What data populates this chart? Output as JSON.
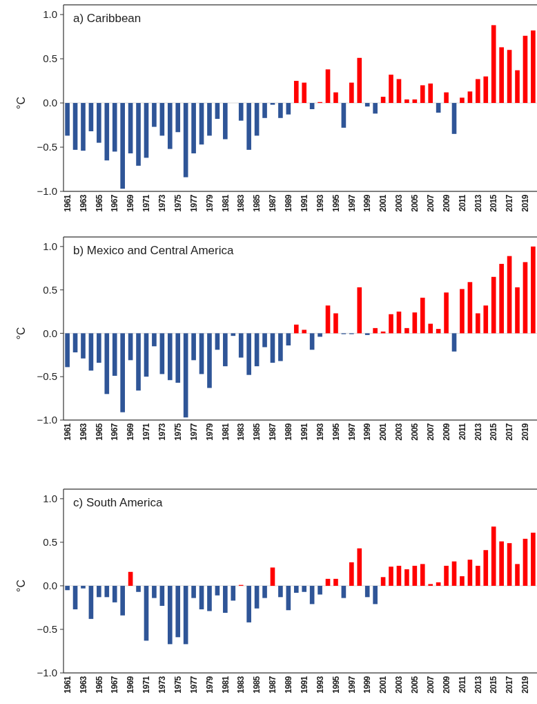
{
  "chart_data": [
    {
      "type": "bar",
      "title": "a) Caribbean",
      "ylabel": "°C",
      "categories": [
        "1961",
        null,
        "1963",
        null,
        "1965",
        null,
        "1967",
        null,
        "1969",
        null,
        "1971",
        null,
        "1973",
        null,
        "1975",
        null,
        "1977",
        null,
        "1979",
        null,
        "1981",
        null,
        "1983",
        null,
        "1985",
        null,
        "1987",
        null,
        "1989",
        null,
        "1991",
        null,
        "1993",
        null,
        "1995",
        null,
        "1997",
        null,
        "1999",
        null,
        "2001",
        null,
        "2003",
        null,
        "2005",
        null,
        "2007",
        null,
        "2009",
        null,
        "2011",
        null,
        "2013",
        null,
        "2015",
        null,
        "2017",
        null,
        "2019",
        null
      ],
      "values": [
        -0.37,
        -0.53,
        -0.54,
        -0.32,
        -0.45,
        -0.65,
        -0.55,
        -0.97,
        -0.57,
        -0.71,
        -0.62,
        -0.27,
        -0.37,
        -0.52,
        -0.33,
        -0.84,
        -0.57,
        -0.47,
        -0.37,
        -0.18,
        -0.41,
        0,
        -0.2,
        -0.53,
        -0.37,
        -0.17,
        -0.02,
        -0.17,
        -0.13,
        0.25,
        0.23,
        -0.07,
        0.01,
        0.38,
        0.12,
        -0.28,
        0.23,
        0.51,
        -0.04,
        -0.12,
        0.07,
        0.32,
        0.27,
        0.04,
        0.04,
        0.2,
        0.22,
        -0.11,
        0.12,
        -0.35,
        0.06,
        0.13,
        0.27,
        0.3,
        0.88,
        0.63,
        0.6,
        0.37,
        0.76,
        0.82
      ],
      "colors": [
        "#2f5597",
        "#2f5597",
        "#2f5597",
        "#2f5597",
        "#2f5597",
        "#2f5597",
        "#2f5597",
        "#2f5597",
        "#2f5597",
        "#2f5597",
        "#2f5597",
        "#2f5597",
        "#2f5597",
        "#2f5597",
        "#2f5597",
        "#2f5597",
        "#2f5597",
        "#2f5597",
        "#2f5597",
        "#2f5597",
        "#2f5597",
        "#2f5597",
        "#2f5597",
        "#2f5597",
        "#2f5597",
        "#2f5597",
        "#2f5597",
        "#2f5597",
        "#2f5597",
        "#ff0000",
        "#ff0000",
        "#2f5597",
        "#ff0000",
        "#ff0000",
        "#ff0000",
        "#2f5597",
        "#ff0000",
        "#ff0000",
        "#2f5597",
        "#2f5597",
        "#ff0000",
        "#ff0000",
        "#ff0000",
        "#ff0000",
        "#ff0000",
        "#ff0000",
        "#ff0000",
        "#2f5597",
        "#ff0000",
        "#2f5597",
        "#ff0000",
        "#ff0000",
        "#ff0000",
        "#ff0000",
        "#ff0000",
        "#ff0000",
        "#ff0000",
        "#ff0000",
        "#ff0000",
        "#ff0000"
      ],
      "ylim": [
        -1,
        1.11
      ],
      "yticks": [
        {
          "value": -1,
          "label": "−1.0"
        },
        {
          "value": -0.5,
          "label": "−0.5"
        },
        {
          "value": 0,
          "label": "0.0"
        },
        {
          "value": 0.5,
          "label": "0.5"
        },
        {
          "value": 1,
          "label": "1.0"
        }
      ],
      "ref_lines": [
        {
          "axis": "y",
          "value": 0,
          "color": "#d9d9d9"
        }
      ]
    },
    {
      "type": "bar",
      "title": "b) Mexico and Central America",
      "ylabel": "°C",
      "categories": [
        "1961",
        null,
        "1963",
        null,
        "1965",
        null,
        "1967",
        null,
        "1969",
        null,
        "1971",
        null,
        "1973",
        null,
        "1975",
        null,
        "1977",
        null,
        "1979",
        null,
        "1981",
        null,
        "1983",
        null,
        "1985",
        null,
        "1987",
        null,
        "1989",
        null,
        "1991",
        null,
        "1993",
        null,
        "1995",
        null,
        "1997",
        null,
        "1999",
        null,
        "2001",
        null,
        "2003",
        null,
        "2005",
        null,
        "2007",
        null,
        "2009",
        null,
        "2011",
        null,
        "2013",
        null,
        "2015",
        null,
        "2017",
        null,
        "2019",
        null
      ],
      "values": [
        -0.39,
        -0.22,
        -0.29,
        -0.43,
        -0.34,
        -0.7,
        -0.49,
        -0.91,
        -0.31,
        -0.66,
        -0.5,
        -0.15,
        -0.47,
        -0.54,
        -0.57,
        -0.97,
        -0.31,
        -0.47,
        -0.63,
        -0.19,
        -0.38,
        -0.03,
        -0.28,
        -0.48,
        -0.38,
        -0.16,
        -0.34,
        -0.32,
        -0.14,
        0.1,
        0.04,
        -0.19,
        -0.04,
        0.32,
        0.23,
        -0.01,
        -0.01,
        0.53,
        -0.02,
        0.06,
        0.02,
        0.22,
        0.25,
        0.06,
        0.24,
        0.41,
        0.11,
        0.05,
        0.47,
        -0.21,
        0.51,
        0.59,
        0.23,
        0.32,
        0.65,
        0.8,
        0.89,
        0.53,
        0.82,
        1.0
      ],
      "colors": [
        "#2f5597",
        "#2f5597",
        "#2f5597",
        "#2f5597",
        "#2f5597",
        "#2f5597",
        "#2f5597",
        "#2f5597",
        "#2f5597",
        "#2f5597",
        "#2f5597",
        "#2f5597",
        "#2f5597",
        "#2f5597",
        "#2f5597",
        "#2f5597",
        "#2f5597",
        "#2f5597",
        "#2f5597",
        "#2f5597",
        "#2f5597",
        "#2f5597",
        "#2f5597",
        "#2f5597",
        "#2f5597",
        "#2f5597",
        "#2f5597",
        "#2f5597",
        "#2f5597",
        "#ff0000",
        "#ff0000",
        "#2f5597",
        "#2f5597",
        "#ff0000",
        "#ff0000",
        "#2f5597",
        "#2f5597",
        "#ff0000",
        "#2f5597",
        "#ff0000",
        "#ff0000",
        "#ff0000",
        "#ff0000",
        "#ff0000",
        "#ff0000",
        "#ff0000",
        "#ff0000",
        "#ff0000",
        "#ff0000",
        "#2f5597",
        "#ff0000",
        "#ff0000",
        "#ff0000",
        "#ff0000",
        "#ff0000",
        "#ff0000",
        "#ff0000",
        "#ff0000",
        "#ff0000",
        "#ff0000"
      ],
      "ylim": [
        -1,
        1.11
      ],
      "yticks": [
        {
          "value": -1,
          "label": "−1.0"
        },
        {
          "value": -0.5,
          "label": "−0.5"
        },
        {
          "value": 0,
          "label": "0.0"
        },
        {
          "value": 0.5,
          "label": "0.5"
        },
        {
          "value": 1,
          "label": "1.0"
        }
      ],
      "ref_lines": [
        {
          "axis": "y",
          "value": 0,
          "color": "#d9d9d9"
        }
      ]
    },
    {
      "type": "bar",
      "title": "c) South America",
      "ylabel": "°C",
      "categories": [
        "1961",
        null,
        "1963",
        null,
        "1965",
        null,
        "1967",
        null,
        "1969",
        null,
        "1971",
        null,
        "1973",
        null,
        "1975",
        null,
        "1977",
        null,
        "1979",
        null,
        "1981",
        null,
        "1983",
        null,
        "1985",
        null,
        "1987",
        null,
        "1989",
        null,
        "1991",
        null,
        "1993",
        null,
        "1995",
        null,
        "1997",
        null,
        "1999",
        null,
        "2001",
        null,
        "2003",
        null,
        "2005",
        null,
        "2007",
        null,
        "2009",
        null,
        "2011",
        null,
        "2013",
        null,
        "2015",
        null,
        "2017",
        null,
        "2019",
        null
      ],
      "values": [
        -0.05,
        -0.27,
        -0.03,
        -0.38,
        -0.13,
        -0.13,
        -0.19,
        -0.34,
        0.16,
        -0.07,
        -0.63,
        -0.14,
        -0.23,
        -0.67,
        -0.59,
        -0.67,
        -0.14,
        -0.27,
        -0.29,
        -0.11,
        -0.31,
        -0.17,
        0.01,
        -0.42,
        -0.26,
        -0.14,
        0.21,
        -0.13,
        -0.28,
        -0.08,
        -0.07,
        -0.21,
        -0.1,
        0.08,
        0.08,
        -0.14,
        0.27,
        0.43,
        -0.13,
        -0.21,
        0.1,
        0.22,
        0.23,
        0.19,
        0.23,
        0.25,
        0.02,
        0.04,
        0.23,
        0.28,
        0.11,
        0.3,
        0.23,
        0.41,
        0.68,
        0.51,
        0.49,
        0.25,
        0.54,
        0.61
      ],
      "colors": [
        "#2f5597",
        "#2f5597",
        "#2f5597",
        "#2f5597",
        "#2f5597",
        "#2f5597",
        "#2f5597",
        "#2f5597",
        "#ff0000",
        "#2f5597",
        "#2f5597",
        "#2f5597",
        "#2f5597",
        "#2f5597",
        "#2f5597",
        "#2f5597",
        "#2f5597",
        "#2f5597",
        "#2f5597",
        "#2f5597",
        "#2f5597",
        "#2f5597",
        "#ff0000",
        "#2f5597",
        "#2f5597",
        "#2f5597",
        "#ff0000",
        "#2f5597",
        "#2f5597",
        "#2f5597",
        "#2f5597",
        "#2f5597",
        "#2f5597",
        "#ff0000",
        "#ff0000",
        "#2f5597",
        "#ff0000",
        "#ff0000",
        "#2f5597",
        "#2f5597",
        "#ff0000",
        "#ff0000",
        "#ff0000",
        "#ff0000",
        "#ff0000",
        "#ff0000",
        "#ff0000",
        "#ff0000",
        "#ff0000",
        "#ff0000",
        "#ff0000",
        "#ff0000",
        "#ff0000",
        "#ff0000",
        "#ff0000",
        "#ff0000",
        "#ff0000",
        "#ff0000",
        "#ff0000",
        "#ff0000"
      ],
      "ylim": [
        -1,
        1.11
      ],
      "yticks": [
        {
          "value": -1,
          "label": "−1.0"
        },
        {
          "value": -0.5,
          "label": "−0.5"
        },
        {
          "value": 0,
          "label": "0.0"
        },
        {
          "value": 0.5,
          "label": "0.5"
        },
        {
          "value": 1,
          "label": "1.0"
        }
      ],
      "ref_lines": [
        {
          "axis": "y",
          "value": 0,
          "color": "#d9d9d9"
        }
      ]
    }
  ]
}
